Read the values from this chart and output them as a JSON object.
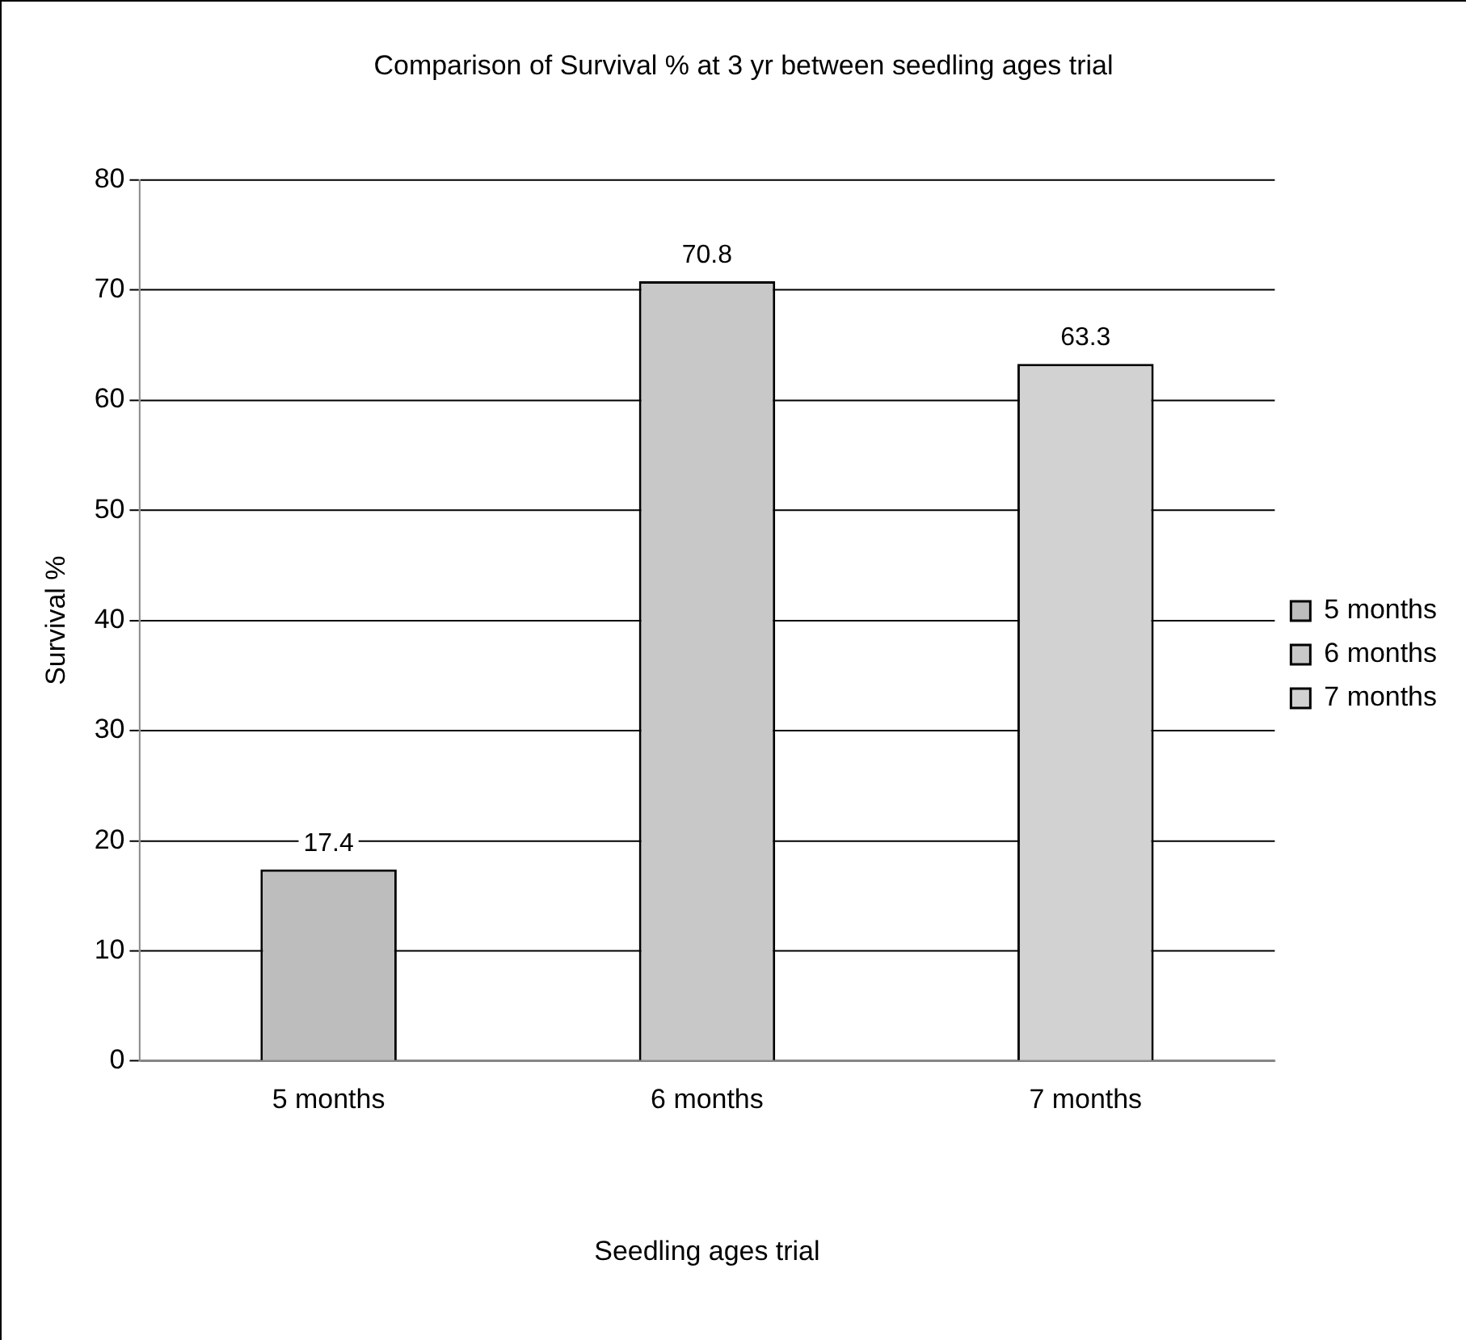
{
  "chart_data": {
    "type": "bar",
    "title": "Comparison of Survival % at 3 yr between seedling ages trial",
    "xlabel": "Seedling ages trial",
    "ylabel": "Survival %",
    "categories": [
      "5 months",
      "6 months",
      "7 months"
    ],
    "series": [
      {
        "name": "5 months",
        "color": "#bdbdbd",
        "values": [
          17.4,
          null,
          null
        ]
      },
      {
        "name": "6 months",
        "color": "#c8c8c8",
        "values": [
          null,
          70.8,
          null
        ]
      },
      {
        "name": "7 months",
        "color": "#d2d2d2",
        "values": [
          null,
          null,
          63.3
        ]
      }
    ],
    "ylim": [
      0,
      80
    ],
    "yticks": [
      0,
      10,
      20,
      30,
      40,
      50,
      60,
      70,
      80
    ],
    "grid": "y",
    "legend": "right",
    "data_labels": true
  }
}
